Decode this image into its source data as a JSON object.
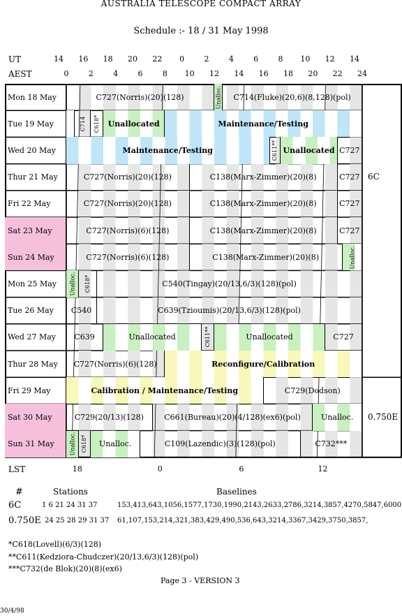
{
  "title": "AUSTRALIA TELESCOPE COMPACT ARRAY",
  "subtitle": "Schedule :- 18 / 31 May 1998",
  "axes": {
    "ut_label": "UT",
    "aest_label": "AEST",
    "lst_label": "LST",
    "ut_ticks": [
      "14",
      "16",
      "18",
      "20",
      "22",
      "0",
      "2",
      "4",
      "6",
      "8",
      "10",
      "12",
      "14"
    ],
    "aest_ticks": [
      "0",
      "2",
      "4",
      "6",
      "8",
      "10",
      "12",
      "14",
      "16",
      "18",
      "20",
      "22",
      "24"
    ],
    "lst_ticks": [
      "18",
      "0",
      "6",
      "12"
    ]
  },
  "colors": {
    "weekend": "#f6c0dc",
    "green": "#c8f0c0",
    "blue": "#bfe6f8",
    "yellow": "#f8f8b8",
    "grey": "#e6e6e6"
  },
  "rows": [
    {
      "day": "Mon  18  May",
      "weekend": false,
      "blocks": [
        {
          "s": 0,
          "e": 12,
          "label": "C727(Norris)(20)(128)"
        },
        {
          "s": 12,
          "e": 12.7,
          "label": "Unalloc.",
          "vert": true,
          "color": "green"
        },
        {
          "s": 12.7,
          "e": 24,
          "label": "C714(Fluke)(20,6)(8,128)(pol)"
        }
      ]
    },
    {
      "day": "Tue  19  May",
      "weekend": false,
      "blocks": [
        {
          "s": 0,
          "e": 0.7,
          "label": "",
          "color": "none"
        },
        {
          "s": 0.7,
          "e": 2,
          "label": "C714",
          "vert": true
        },
        {
          "s": 2,
          "e": 3,
          "label": "C618*",
          "vert": true
        },
        {
          "s": 3,
          "e": 8,
          "label": "Unallocated",
          "bold": true,
          "color": "green"
        },
        {
          "s": 8,
          "e": 24,
          "label": "Maintenance/Testing",
          "bold": true,
          "color": "blue"
        }
      ]
    },
    {
      "day": "Wed  20  May",
      "weekend": false,
      "blocks": [
        {
          "s": 0,
          "e": 16.5,
          "label": "Maintenance/Testing",
          "bold": true,
          "color": "blue"
        },
        {
          "s": 16.5,
          "e": 17.4,
          "label": "C611**",
          "vert": true
        },
        {
          "s": 17.4,
          "e": 22,
          "label": "Unallocated",
          "bold": true,
          "color": "green"
        },
        {
          "s": 22,
          "e": 24,
          "label": "C727"
        }
      ]
    },
    {
      "day": "Thur  21  May",
      "weekend": false,
      "blocks": [
        {
          "s": 0,
          "e": 10,
          "label": "C727(Norris)(20)(128)"
        },
        {
          "s": 10,
          "e": 22,
          "label": "C138(Marx-Zimmer)(20)(8)"
        },
        {
          "s": 22,
          "e": 24,
          "label": "C727"
        }
      ]
    },
    {
      "day": "Fri  22  May",
      "weekend": false,
      "blocks": [
        {
          "s": 0,
          "e": 10,
          "label": "C727(Norris)(20)(128)"
        },
        {
          "s": 10,
          "e": 22,
          "label": "C138(Marx-Zimmer)(20)(8)"
        },
        {
          "s": 22,
          "e": 24,
          "label": "C727"
        }
      ]
    },
    {
      "day": "Sat  23  May",
      "weekend": true,
      "blocks": [
        {
          "s": 0,
          "e": 10,
          "label": "C727(Norris)(6)(128)"
        },
        {
          "s": 10,
          "e": 22,
          "label": "C138(Marx-Zimmer)(20)(8)"
        },
        {
          "s": 22,
          "e": 24,
          "label": "C727"
        }
      ]
    },
    {
      "day": "Sun  24  May",
      "weekend": true,
      "blocks": [
        {
          "s": 0,
          "e": 10,
          "label": "C727(Norris)(6)(128)"
        },
        {
          "s": 10,
          "e": 22.4,
          "label": "C138(Marx-Zimmer)(20)(8)"
        },
        {
          "s": 22.4,
          "e": 24,
          "label": "Unalloc.",
          "vert": true,
          "color": "green"
        }
      ]
    },
    {
      "day": "Mon  25  May",
      "weekend": false,
      "blocks": [
        {
          "s": 0,
          "e": 1,
          "label": "Unalloc.",
          "vert": true,
          "color": "green"
        },
        {
          "s": 1,
          "e": 2.5,
          "label": "C618*",
          "vert": true
        },
        {
          "s": 2.5,
          "e": 24,
          "label": "C540(Tingay)(20/13,6/3)(128)(pol)"
        }
      ]
    },
    {
      "day": "Tue  26  May",
      "weekend": false,
      "blocks": [
        {
          "s": 0,
          "e": 2.5,
          "label": "C540"
        },
        {
          "s": 2.5,
          "e": 24,
          "label": "C639(Tzioumis)(20/13,6/3)(128)(pol)"
        }
      ]
    },
    {
      "day": "Wed  27  May",
      "weekend": false,
      "blocks": [
        {
          "s": 0,
          "e": 3,
          "label": "C639"
        },
        {
          "s": 3,
          "e": 11,
          "label": "Unallocated",
          "color": "green"
        },
        {
          "s": 11,
          "e": 12,
          "label": "C611**",
          "vert": true
        },
        {
          "s": 12,
          "e": 21,
          "label": "Unallocated",
          "color": "green"
        },
        {
          "s": 21,
          "e": 24,
          "label": "C727"
        }
      ]
    },
    {
      "day": "Thur  28  May",
      "weekend": false,
      "blocks": [
        {
          "s": 0,
          "e": 8,
          "label": "C727(Norris)(6)(128)"
        },
        {
          "s": 8,
          "e": 24,
          "label": "Reconfigure/Calibration",
          "bold": true,
          "color": "yellow"
        }
      ]
    },
    {
      "day": "Fri  29  May",
      "weekend": false,
      "blocks": [
        {
          "s": 0,
          "e": 16,
          "label": "Calibration / Maintenance/Testing",
          "bold": true,
          "color": "yellow"
        },
        {
          "s": 16,
          "e": 24,
          "label": "C729(Dodson)"
        }
      ]
    },
    {
      "day": "Sat  30  May",
      "weekend": true,
      "blocks": [
        {
          "s": 0,
          "e": 7,
          "label": "C729(20/13)(128)"
        },
        {
          "s": 7,
          "e": 20,
          "label": "C661(Bureau)(20)(4/128)(ex6)(pol)"
        },
        {
          "s": 20,
          "e": 24,
          "label": "Unalloc.",
          "color": "green"
        }
      ]
    },
    {
      "day": "Sun  31  May",
      "weekend": true,
      "blocks": [
        {
          "s": 0,
          "e": 1,
          "label": "Unalloc.",
          "vert": true,
          "color": "green"
        },
        {
          "s": 1,
          "e": 2,
          "label": "C618*",
          "vert": true
        },
        {
          "s": 2,
          "e": 6,
          "label": "Unalloc.",
          "color": "green"
        },
        {
          "s": 6,
          "e": 19,
          "label": "C109(Lazendic)(3)(128)(pol)"
        },
        {
          "s": 19,
          "e": 24,
          "label": "C732***"
        }
      ]
    }
  ],
  "configs": [
    {
      "label": "6C",
      "rows": [
        0,
        7
      ]
    },
    {
      "label": "0.750E",
      "rows": [
        11,
        14
      ]
    }
  ],
  "footer": {
    "col_hash": "#",
    "col_stations": "Stations",
    "col_baselines": "Baselines",
    "configs": [
      {
        "name": "6C",
        "stations": "1  6  21  24  31  37",
        "baselines": "153,413,643,1056,1577,1730,1990,2143,2633,2786,3214,3857,4270,5847,6000,"
      },
      {
        "name": "0.750E",
        "stations": "24  25  28  29  31  37",
        "baselines": "61,107,153,214,321,383,429,490,536,643,3214,3367,3429,3750,3857,"
      }
    ],
    "notes": [
      "*C618(Lovell)(6/3)(128)",
      "**C611(Kedziora-Chudczer)(20/13,6/3)(128)(pol)",
      "***C732(de Blok)(20)(8)(ex6)"
    ],
    "page": "Page 3 - VERSION 3",
    "date": "30/4/98"
  }
}
